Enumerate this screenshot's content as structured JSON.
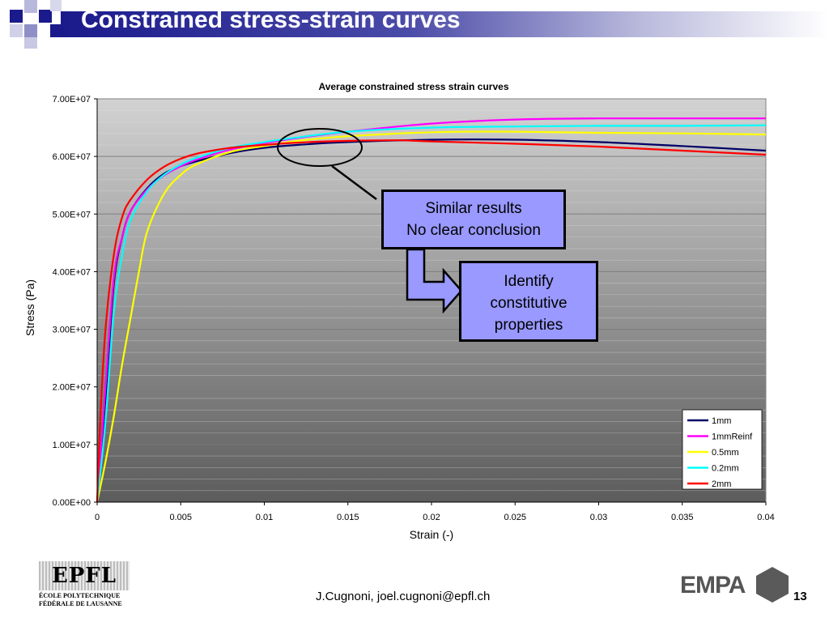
{
  "slide": {
    "title": "Constrained stress-strain curves",
    "footer": "J.Cugnoni, joel.cugnoni@epfl.ch",
    "page_number": "13",
    "callout_1": {
      "line1": "Similar results",
      "line2": "No clear conclusion"
    },
    "callout_2": {
      "line1": "Identify",
      "line2": "constitutive",
      "line3": "properties"
    },
    "epfl_logo": {
      "mark": "EPFL",
      "line1": "ÉCOLE  POLYTECHNIQUE",
      "line2": "FÉDÉRALE DE LAUSANNE"
    },
    "empa_logo": {
      "mark": "EMPA"
    },
    "colors": {
      "title_blue": "#1a1a8c",
      "callout_fill": "#9999ff"
    }
  },
  "chart_data": {
    "type": "line",
    "title": "Average constrained stress strain curves",
    "xlabel": "Strain (-)",
    "ylabel": "Stress (Pa)",
    "xlim": [
      0,
      0.04
    ],
    "ylim": [
      0,
      70000000
    ],
    "x_ticks": [
      "0",
      "0.005",
      "0.01",
      "0.015",
      "0.02",
      "0.025",
      "0.03",
      "0.035",
      "0.04"
    ],
    "y_ticks": [
      "0.00E+00",
      "1.00E+07",
      "2.00E+07",
      "3.00E+07",
      "4.00E+07",
      "5.00E+07",
      "6.00E+07",
      "7.00E+07"
    ],
    "grid": true,
    "legend_position": "bottom-right",
    "series": [
      {
        "name": "1mm",
        "color": "#000066",
        "points": [
          [
            0,
            0
          ],
          [
            0.0005,
            18000000
          ],
          [
            0.001,
            38000000
          ],
          [
            0.0015,
            46000000
          ],
          [
            0.002,
            50500000
          ],
          [
            0.003,
            54500000
          ],
          [
            0.004,
            57000000
          ],
          [
            0.005,
            58300000
          ],
          [
            0.006,
            59200000
          ],
          [
            0.008,
            60600000
          ],
          [
            0.01,
            61500000
          ],
          [
            0.012,
            62000000
          ],
          [
            0.015,
            62500000
          ],
          [
            0.02,
            62900000
          ],
          [
            0.025,
            62900000
          ],
          [
            0.03,
            62500000
          ],
          [
            0.035,
            61800000
          ],
          [
            0.04,
            61000000
          ]
        ]
      },
      {
        "name": "1mmReinf",
        "color": "#ff00ff",
        "points": [
          [
            0,
            0
          ],
          [
            0.0005,
            20000000
          ],
          [
            0.001,
            39000000
          ],
          [
            0.0015,
            46000000
          ],
          [
            0.002,
            50500000
          ],
          [
            0.003,
            54300000
          ],
          [
            0.004,
            56700000
          ],
          [
            0.005,
            58300000
          ],
          [
            0.006,
            59500000
          ],
          [
            0.008,
            61200000
          ],
          [
            0.01,
            62300000
          ],
          [
            0.012,
            63200000
          ],
          [
            0.015,
            64300000
          ],
          [
            0.02,
            65700000
          ],
          [
            0.025,
            66400000
          ],
          [
            0.03,
            66600000
          ],
          [
            0.035,
            66600000
          ],
          [
            0.04,
            66600000
          ]
        ]
      },
      {
        "name": "0.5mm",
        "color": "#ffff00",
        "points": [
          [
            0,
            0
          ],
          [
            0.0005,
            7000000
          ],
          [
            0.001,
            15000000
          ],
          [
            0.0015,
            24000000
          ],
          [
            0.002,
            32000000
          ],
          [
            0.0025,
            40000000
          ],
          [
            0.003,
            47000000
          ],
          [
            0.004,
            53500000
          ],
          [
            0.005,
            56800000
          ],
          [
            0.006,
            58700000
          ],
          [
            0.008,
            60800000
          ],
          [
            0.01,
            61800000
          ],
          [
            0.012,
            62700000
          ],
          [
            0.015,
            63500000
          ],
          [
            0.02,
            64200000
          ],
          [
            0.025,
            64300000
          ],
          [
            0.03,
            64100000
          ],
          [
            0.035,
            64000000
          ],
          [
            0.04,
            63800000
          ]
        ]
      },
      {
        "name": "0.2mm",
        "color": "#00ffff",
        "points": [
          [
            0,
            0
          ],
          [
            0.0005,
            14000000
          ],
          [
            0.001,
            33000000
          ],
          [
            0.0015,
            43000000
          ],
          [
            0.002,
            49000000
          ],
          [
            0.003,
            54000000
          ],
          [
            0.004,
            56800000
          ],
          [
            0.005,
            58600000
          ],
          [
            0.006,
            59800000
          ],
          [
            0.008,
            61500000
          ],
          [
            0.01,
            62500000
          ],
          [
            0.012,
            63300000
          ],
          [
            0.015,
            64300000
          ],
          [
            0.02,
            65000000
          ],
          [
            0.025,
            65200000
          ],
          [
            0.03,
            65300000
          ],
          [
            0.035,
            65300000
          ],
          [
            0.04,
            65400000
          ]
        ]
      },
      {
        "name": "2mm",
        "color": "#ff0000",
        "points": [
          [
            0,
            0
          ],
          [
            0.0002,
            15000000
          ],
          [
            0.0005,
            30000000
          ],
          [
            0.001,
            43000000
          ],
          [
            0.0015,
            49500000
          ],
          [
            0.002,
            52500000
          ],
          [
            0.003,
            56000000
          ],
          [
            0.004,
            58200000
          ],
          [
            0.005,
            59600000
          ],
          [
            0.006,
            60500000
          ],
          [
            0.008,
            61500000
          ],
          [
            0.01,
            62000000
          ],
          [
            0.012,
            62400000
          ],
          [
            0.015,
            62700000
          ],
          [
            0.018,
            62800000
          ],
          [
            0.02,
            62600000
          ],
          [
            0.025,
            62200000
          ],
          [
            0.03,
            61700000
          ],
          [
            0.035,
            61000000
          ],
          [
            0.04,
            60300000
          ]
        ]
      }
    ]
  }
}
